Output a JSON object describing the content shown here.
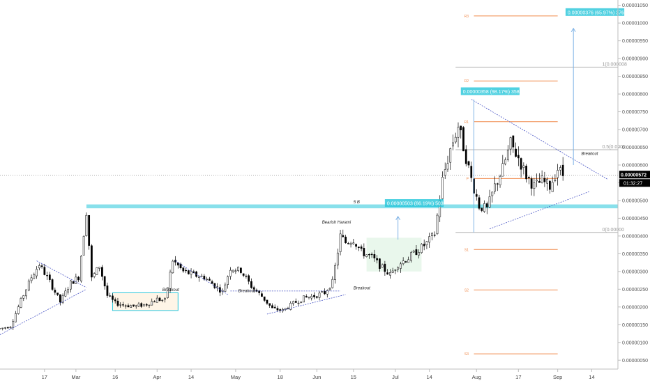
{
  "chart_data": {
    "type": "candlestick",
    "title": "",
    "xlabel": "",
    "ylabel": "",
    "ylim": [
      2.5e-07,
      1.065e-05
    ],
    "y_ticks": [
      "0.00000050",
      "0.00000100",
      "0.00000150",
      "0.00000200",
      "0.00000250",
      "0.00000300",
      "0.00000350",
      "0.00000400",
      "0.00000450",
      "0.00000500",
      "0.00000550",
      "0.00000600",
      "0.00000650",
      "0.00000700",
      "0.00000750",
      "0.00000800",
      "0.00000850",
      "0.00000900",
      "0.00000950",
      "0.00001000",
      "0.00001050"
    ],
    "x_ticks": [
      {
        "label": "17",
        "day": 17
      },
      {
        "label": "Mar",
        "day": 29
      },
      {
        "label": "16",
        "day": 44
      },
      {
        "label": "Apr",
        "day": 60
      },
      {
        "label": "14",
        "day": 73
      },
      {
        "label": "May",
        "day": 90
      },
      {
        "label": "18",
        "day": 107
      },
      {
        "label": "Jun",
        "day": 121
      },
      {
        "label": "15",
        "day": 135
      },
      {
        "label": "Jul",
        "day": 151
      },
      {
        "label": "14",
        "day": 164
      },
      {
        "label": "Aug",
        "day": 182
      },
      {
        "label": "17",
        "day": 198
      },
      {
        "label": "Sep",
        "day": 213
      },
      {
        "label": "14",
        "day": 226
      }
    ],
    "x_range": [
      0,
      236
    ],
    "current_price": "0.00000572",
    "countdown": "01:32:27",
    "close_series": [
      [
        0,
        1.39e-06
      ],
      [
        4,
        1.46e-06
      ],
      [
        8,
        2.18e-06
      ],
      [
        12,
        2.84e-06
      ],
      [
        15,
        3.2e-06
      ],
      [
        19,
        2.71e-06
      ],
      [
        23,
        2.14e-06
      ],
      [
        27,
        2.68e-06
      ],
      [
        30,
        2.84e-06
      ],
      [
        33,
        4.7e-06
      ],
      [
        35,
        2.8e-06
      ],
      [
        38,
        3.16e-06
      ],
      [
        41,
        2.32e-06
      ],
      [
        44,
        2.11e-06
      ],
      [
        48,
        2.05e-06
      ],
      [
        52,
        2.02e-06
      ],
      [
        56,
        2.08e-06
      ],
      [
        60,
        2.22e-06
      ],
      [
        63,
        2.18e-06
      ],
      [
        66,
        3.32e-06
      ],
      [
        70,
        3e-06
      ],
      [
        74,
        2.9e-06
      ],
      [
        78,
        2.84e-06
      ],
      [
        82,
        2.6e-06
      ],
      [
        85,
        2.43e-06
      ],
      [
        88,
        3.1e-06
      ],
      [
        92,
        3.03e-06
      ],
      [
        96,
        2.58e-06
      ],
      [
        100,
        2.3e-06
      ],
      [
        104,
        1.95e-06
      ],
      [
        108,
        1.9e-06
      ],
      [
        112,
        2.1e-06
      ],
      [
        116,
        2.25e-06
      ],
      [
        120,
        2.31e-06
      ],
      [
        124,
        2.4e-06
      ],
      [
        127,
        2.7e-06
      ],
      [
        130,
        4e-06
      ],
      [
        132,
        3.82e-06
      ],
      [
        135,
        3.9e-06
      ],
      [
        138,
        3.55e-06
      ],
      [
        142,
        3.4e-06
      ],
      [
        146,
        3.1e-06
      ],
      [
        149,
        2.91e-06
      ],
      [
        152,
        3.21e-06
      ],
      [
        156,
        3.38e-06
      ],
      [
        160,
        3.62e-06
      ],
      [
        163,
        3.8e-06
      ],
      [
        166,
        4.06e-06
      ],
      [
        169,
        5.58e-06
      ],
      [
        172,
        6.45e-06
      ],
      [
        175,
        7.1e-06
      ],
      [
        177,
        6.52e-06
      ],
      [
        180,
        5.6e-06
      ],
      [
        183,
        4.85e-06
      ],
      [
        186,
        4.75e-06
      ],
      [
        189,
        5.4e-06
      ],
      [
        192,
        5.9e-06
      ],
      [
        195,
        6.6e-06
      ],
      [
        198,
        6.2e-06
      ],
      [
        201,
        5.7e-06
      ],
      [
        204,
        5.4e-06
      ],
      [
        207,
        5.55e-06
      ],
      [
        210,
        5.4e-06
      ],
      [
        213,
        5.9e-06
      ],
      [
        215,
        5.72e-06
      ]
    ],
    "trendlines": [
      {
        "name": "support-1",
        "x": [
          0,
          33
        ],
        "y": [
          1.22e-06,
          2.5e-06
        ]
      },
      {
        "name": "resistance-1",
        "x": [
          14,
          33
        ],
        "y": [
          3.3e-06,
          2.55e-06
        ]
      },
      {
        "name": "resistance-2",
        "x": [
          67,
          87
        ],
        "y": [
          3.3e-06,
          2.35e-06
        ]
      },
      {
        "name": "resistance-3",
        "x": [
          88,
          130
        ],
        "y": [
          2.45e-06,
          2.45e-06
        ]
      },
      {
        "name": "support-3",
        "x": [
          102,
          132
        ],
        "y": [
          1.8e-06,
          2.35e-06
        ]
      },
      {
        "name": "triangle-top",
        "x": [
          180,
          232
        ],
        "y": [
          7.85e-06,
          5.6e-06
        ]
      },
      {
        "name": "triangle-bottom",
        "x": [
          187,
          225
        ],
        "y": [
          4.2e-06,
          5.25e-06
        ]
      }
    ],
    "fib_levels": [
      {
        "label": "1(0.000008",
        "value": 8.76e-06
      },
      {
        "label": "0.5(0.0000",
        "value": 6.43e-06
      },
      {
        "label": "0(0.00000",
        "value": 4.1e-06
      }
    ],
    "pivot_levels": [
      {
        "label": "R3",
        "value": 1.02e-05
      },
      {
        "label": "R2",
        "value": 8.37e-06
      },
      {
        "label": "R1",
        "value": 7.22e-06
      },
      {
        "label": "P",
        "value": 5.62e-06
      },
      {
        "label": "S1",
        "value": 3.62e-06
      },
      {
        "label": "S2",
        "value": 2.48e-06
      },
      {
        "label": "S3",
        "value": 6.8e-07
      }
    ],
    "horizontal_zone": {
      "low": 4.8e-06,
      "high": 4.87e-06
    },
    "boxes": [
      {
        "name": "consolidation-box",
        "x": [
          43,
          68
        ],
        "y": [
          1.9e-06,
          2.4e-06
        ]
      }
    ],
    "annotations": [
      {
        "text": "Breakout",
        "x": 62,
        "y": 2.45e-06
      },
      {
        "text": "Breakout",
        "x": 91,
        "y": 2.42e-06
      },
      {
        "text": "Breakout",
        "x": 135,
        "y": 2.5e-06
      },
      {
        "text": "Breakout",
        "x": 222,
        "y": 6.28e-06
      },
      {
        "text": "Bearish Harami",
        "x": 123,
        "y": 4.35e-06
      },
      {
        "text": "5 B",
        "x": 135,
        "y": 4.92e-06
      }
    ],
    "measure_tags": [
      {
        "text": "0.00000503 (66.19%) 503",
        "x": 147,
        "y": 4.92e-06
      },
      {
        "text": "0.00000358 (98.17%) 358",
        "x": 176,
        "y": 8.07e-06
      },
      {
        "text": "0.00000376 (65.97%) 376",
        "x": 216,
        "y": 1.03e-05
      }
    ],
    "colors": {
      "bull": "#ffffff",
      "bear": "#000000",
      "outline": "#000000",
      "trendline": "#4a56c6",
      "fib": "#b3b3b3",
      "pivot": "#f08a4b",
      "zone": "#26c6da",
      "tag": "#26c6da",
      "arrow": "#7fb3e6",
      "price_tag": "#000000"
    }
  }
}
